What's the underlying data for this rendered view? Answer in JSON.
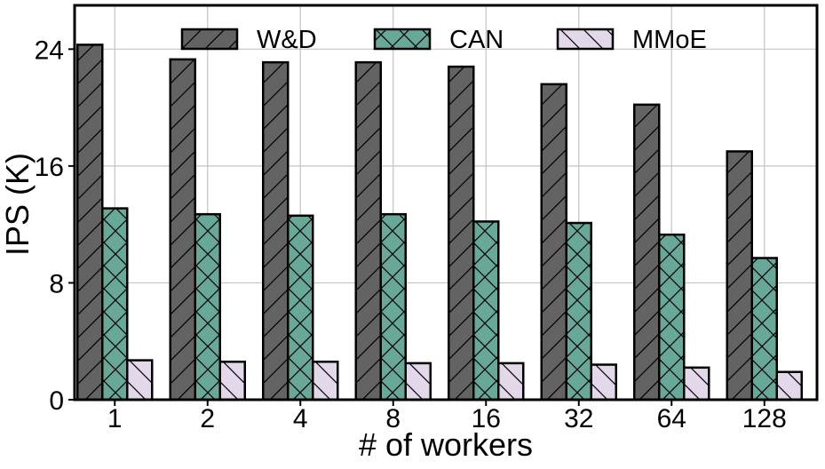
{
  "chart_data": {
    "type": "bar",
    "title": "",
    "xlabel": "# of workers",
    "ylabel": "IPS (K)",
    "categories": [
      "1",
      "2",
      "4",
      "8",
      "16",
      "32",
      "64",
      "128"
    ],
    "ylim": [
      0,
      27
    ],
    "yticks": [
      0,
      8,
      16,
      24
    ],
    "grid": true,
    "legend_position": "top-center",
    "series": [
      {
        "name": "W&D",
        "color": "#636363",
        "hatch": "forward-diagonal",
        "values": [
          24.3,
          23.3,
          23.1,
          23.1,
          22.8,
          21.6,
          20.2,
          17.0
        ]
      },
      {
        "name": "CAN",
        "color": "#67a899",
        "hatch": "crosshatch",
        "values": [
          13.1,
          12.7,
          12.6,
          12.7,
          12.2,
          12.1,
          11.3,
          9.7
        ]
      },
      {
        "name": "MMoE",
        "color": "#e3d7ea",
        "hatch": "back-diagonal",
        "values": [
          2.7,
          2.6,
          2.6,
          2.5,
          2.5,
          2.4,
          2.2,
          1.9
        ]
      }
    ]
  }
}
